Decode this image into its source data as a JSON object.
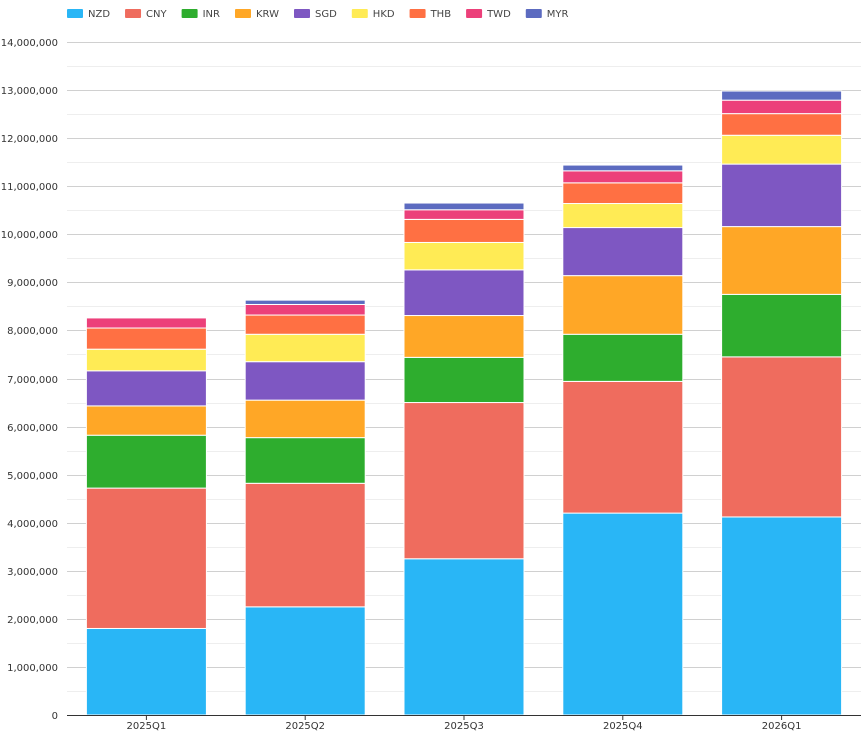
{
  "chart_data": {
    "type": "bar",
    "stacked": true,
    "categories": [
      "2025Q1",
      "2025Q2",
      "2025Q3",
      "2025Q4",
      "2026Q1"
    ],
    "ylim": [
      0,
      14000000
    ],
    "yticks": [
      0,
      1000000,
      2000000,
      3000000,
      4000000,
      5000000,
      6000000,
      7000000,
      8000000,
      9000000,
      10000000,
      11000000,
      12000000,
      13000000,
      14000000
    ],
    "ytick_labels": [
      "0",
      "1,000,000",
      "2,000,000",
      "3,000,000",
      "4,000,000",
      "5,000,000",
      "6,000,000",
      "7,000,000",
      "8,000,000",
      "9,000,000",
      "10,000,000",
      "11,000,000",
      "12,000,000",
      "13,000,000",
      "14,000,000"
    ],
    "grid": true,
    "legend_position": "top-left",
    "series": [
      {
        "name": "NZD",
        "color": "#29b6f6",
        "values": [
          1800000,
          2250000,
          3250000,
          4200000,
          4120000
        ]
      },
      {
        "name": "CNY",
        "color": "#ef6c5e",
        "values": [
          2920000,
          2570000,
          3250000,
          2740000,
          3330000
        ]
      },
      {
        "name": "INR",
        "color": "#2ead2e",
        "values": [
          1100000,
          950000,
          940000,
          980000,
          1300000
        ]
      },
      {
        "name": "KRW",
        "color": "#ffa726",
        "values": [
          610000,
          780000,
          870000,
          1220000,
          1410000
        ]
      },
      {
        "name": "SGD",
        "color": "#7e57c2",
        "values": [
          730000,
          800000,
          950000,
          1000000,
          1300000
        ]
      },
      {
        "name": "HKD",
        "color": "#ffeb55",
        "values": [
          450000,
          570000,
          570000,
          500000,
          600000
        ]
      },
      {
        "name": "THB",
        "color": "#ff7043",
        "values": [
          440000,
          400000,
          480000,
          430000,
          450000
        ]
      },
      {
        "name": "TWD",
        "color": "#ec407a",
        "values": [
          210000,
          220000,
          200000,
          250000,
          280000
        ]
      },
      {
        "name": "MYR",
        "color": "#5c6bc0",
        "values": [
          0,
          90000,
          140000,
          120000,
          190000
        ]
      }
    ]
  }
}
